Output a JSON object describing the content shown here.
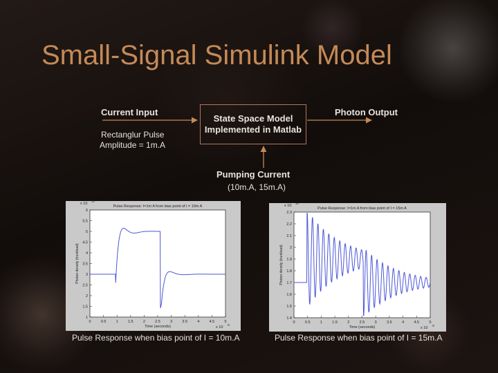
{
  "slide": {
    "title": "Small-Signal Simulink Model"
  },
  "diagram": {
    "current_input": "Current Input",
    "pulse_line1": "Rectanglur Pulse",
    "pulse_line2": "Amplitude = 1m.A",
    "box_line1": "State Space Model",
    "box_line2": "Implemented in Matlab",
    "photon_output": "Photon Output",
    "pumping_current": "Pumping Current",
    "pumping_values": "(10m.A, 15m.A)"
  },
  "plots": [
    {
      "title": "Pulse Response: I=1m A from bias point of I = 10m A",
      "exponent": "x 10",
      "exponent_power": "13",
      "xexp": "x 10",
      "xexp_power": "-9",
      "ylabel": "Photon density (trunkload)",
      "xlabel": "Time (seconds)",
      "yticks": [
        "6",
        "5.5",
        "5",
        "4.5",
        "4",
        "3.5",
        "3",
        "2.5",
        "2",
        "1.5",
        "1"
      ],
      "xticks": [
        "0",
        "0.5",
        "1",
        "1.5",
        "2",
        "2.5",
        "3",
        "3.5",
        "4",
        "4.5",
        "5"
      ],
      "caption": "Pulse Response when bias point of I = 10m.A"
    },
    {
      "title": "Pulse Response: I=1m A from bias point of I = 15m A",
      "exponent": "x 10",
      "exponent_power": "14",
      "xexp": "x 10",
      "xexp_power": "-9",
      "ylabel": "Photon density (trunkload)",
      "xlabel": "Time (seconds)",
      "yticks": [
        "2.3",
        "2.2",
        "2.1",
        "2",
        "1.9",
        "1.8",
        "1.7",
        "1.6",
        "1.5",
        "1.4"
      ],
      "xticks": [
        "0",
        "0.5",
        "1",
        "1.5",
        "2",
        "2.5",
        "3",
        "3.5",
        "4",
        "4.5",
        "5"
      ],
      "caption": "Pulse Response when bias point of I = 15m.A"
    }
  ],
  "colors": {
    "title": "#c58a57",
    "text": "#e8e3dc",
    "arrow": "#c58a57",
    "trace": "#4b55d6"
  }
}
